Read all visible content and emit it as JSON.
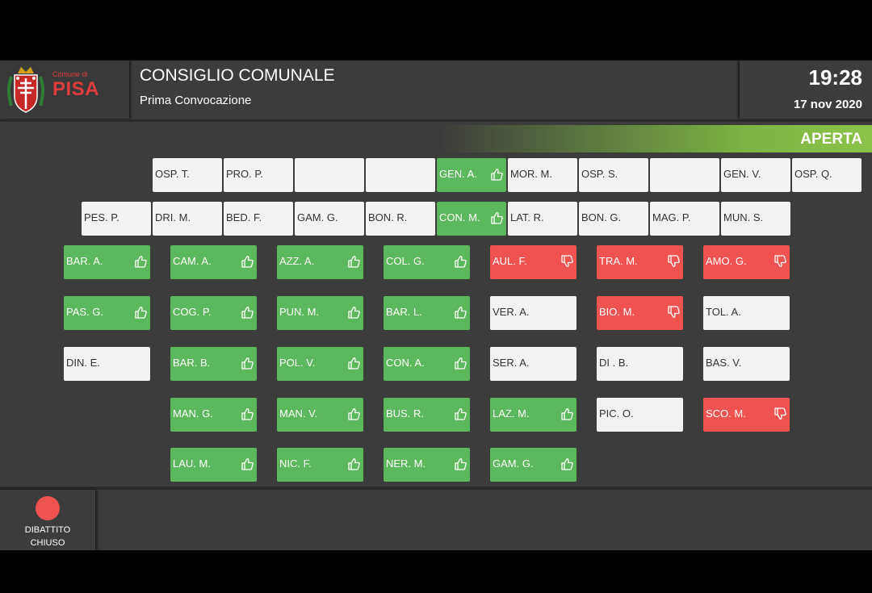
{
  "header": {
    "logo_top": "Comune di",
    "logo_name": "PISA",
    "title": "CONSIGLIO COMUNALE",
    "subtitle": "Prima Convocazione",
    "time": "19:28",
    "date": "17 nov 2020"
  },
  "status": {
    "label": "APERTA",
    "color": "#8bc34a"
  },
  "colors": {
    "green": "#5cb85c",
    "red": "#ef5350",
    "white": "#f2f2f2"
  },
  "seat_rows": [
    {
      "seats": [
        {
          "name": "OSP. T.",
          "state": "none"
        },
        {
          "name": "PRO. P.",
          "state": "none"
        },
        {
          "name": "",
          "state": "none"
        },
        {
          "name": "",
          "state": "none"
        },
        {
          "name": "GEN. A.",
          "state": "yes",
          "icon": "thumbs-up-icon"
        },
        {
          "name": "MOR. M.",
          "state": "none"
        },
        {
          "name": "OSP. S.",
          "state": "none"
        },
        {
          "name": "",
          "state": "none"
        },
        {
          "name": "GEN. V.",
          "state": "none"
        },
        {
          "name": "OSP. Q.",
          "state": "none"
        }
      ]
    },
    {
      "seats": [
        {
          "name": "PES. P.",
          "state": "none"
        },
        {
          "name": "DRI. M.",
          "state": "none"
        },
        {
          "name": "BED. F.",
          "state": "none"
        },
        {
          "name": "GAM. G.",
          "state": "none"
        },
        {
          "name": "BON. R.",
          "state": "none"
        },
        {
          "name": "CON. M.",
          "state": "yes",
          "icon": "thumbs-up-icon"
        },
        {
          "name": "LAT. R.",
          "state": "none"
        },
        {
          "name": "BON. G.",
          "state": "none"
        },
        {
          "name": "MAG. P.",
          "state": "none"
        },
        {
          "name": "MUN. S.",
          "state": "none"
        }
      ]
    },
    {
      "seats": [
        {
          "name": "BAR. A.",
          "state": "yes",
          "icon": "thumbs-up-icon"
        },
        {
          "name": "CAM. A.",
          "state": "yes",
          "icon": "thumbs-up-icon"
        },
        {
          "name": "AZZ. A.",
          "state": "yes",
          "icon": "thumbs-up-icon"
        },
        {
          "name": "COL. G.",
          "state": "yes",
          "icon": "thumbs-up-icon"
        },
        {
          "name": "AUL. F.",
          "state": "no",
          "icon": "thumbs-down-icon"
        },
        {
          "name": "TRA. M.",
          "state": "no",
          "icon": "thumbs-down-icon"
        },
        {
          "name": "AMO. G.",
          "state": "no",
          "icon": "thumbs-down-icon"
        }
      ]
    },
    {
      "seats": [
        {
          "name": "PAS. G.",
          "state": "yes",
          "icon": "thumbs-up-icon"
        },
        {
          "name": "COG. P.",
          "state": "yes",
          "icon": "thumbs-up-icon"
        },
        {
          "name": "PUN. M.",
          "state": "yes",
          "icon": "thumbs-up-icon"
        },
        {
          "name": "BAR. L.",
          "state": "yes",
          "icon": "thumbs-up-icon"
        },
        {
          "name": "VER. A.",
          "state": "none"
        },
        {
          "name": "BIO. M.",
          "state": "no",
          "icon": "thumbs-down-icon"
        },
        {
          "name": "TOL. A.",
          "state": "none"
        }
      ]
    },
    {
      "seats": [
        {
          "name": "DIN. E.",
          "state": "none"
        },
        {
          "name": "BAR. B.",
          "state": "yes",
          "icon": "thumbs-up-icon"
        },
        {
          "name": "POL. V.",
          "state": "yes",
          "icon": "thumbs-up-icon"
        },
        {
          "name": "CON. A.",
          "state": "yes",
          "icon": "thumbs-up-icon"
        },
        {
          "name": "SER. A.",
          "state": "none"
        },
        {
          "name": "DI . B.",
          "state": "none"
        },
        {
          "name": "BAS. V.",
          "state": "none"
        }
      ]
    },
    {
      "seats": [
        {
          "name": "MAN. G.",
          "state": "yes",
          "icon": "thumbs-up-icon"
        },
        {
          "name": "MAN. V.",
          "state": "yes",
          "icon": "thumbs-up-icon"
        },
        {
          "name": "BUS. R.",
          "state": "yes",
          "icon": "thumbs-up-icon"
        },
        {
          "name": "LAZ. M.",
          "state": "yes",
          "icon": "thumbs-up-icon"
        },
        {
          "name": "PIC. O.",
          "state": "none"
        },
        {
          "name": "SCO. M.",
          "state": "no",
          "icon": "thumbs-down-icon"
        }
      ]
    },
    {
      "seats": [
        {
          "name": "LAU. M.",
          "state": "yes",
          "icon": "thumbs-up-icon"
        },
        {
          "name": "NIC. F.",
          "state": "yes",
          "icon": "thumbs-up-icon"
        },
        {
          "name": "NER. M.",
          "state": "yes",
          "icon": "thumbs-up-icon"
        },
        {
          "name": "GAM. G.",
          "state": "yes",
          "icon": "thumbs-up-icon"
        }
      ]
    }
  ],
  "debate": {
    "label_line1": "DIBATTITO",
    "label_line2": "CHIUSO",
    "indicator_color": "#ef5350"
  }
}
